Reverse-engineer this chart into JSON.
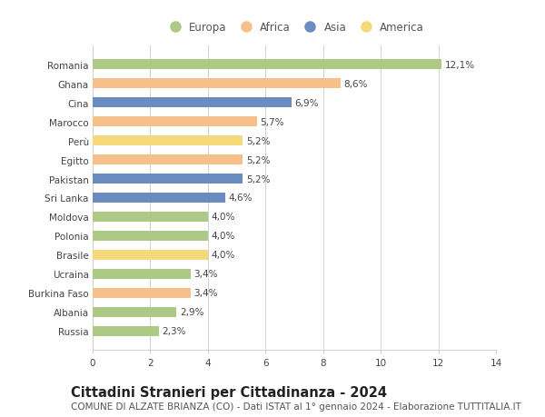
{
  "countries": [
    "Romania",
    "Ghana",
    "Cina",
    "Marocco",
    "Perù",
    "Egitto",
    "Pakistan",
    "Sri Lanka",
    "Moldova",
    "Polonia",
    "Brasile",
    "Ucraina",
    "Burkina Faso",
    "Albania",
    "Russia"
  ],
  "values": [
    12.1,
    8.6,
    6.9,
    5.7,
    5.2,
    5.2,
    5.2,
    4.6,
    4.0,
    4.0,
    4.0,
    3.4,
    3.4,
    2.9,
    2.3
  ],
  "labels": [
    "12,1%",
    "8,6%",
    "6,9%",
    "5,7%",
    "5,2%",
    "5,2%",
    "5,2%",
    "4,6%",
    "4,0%",
    "4,0%",
    "4,0%",
    "3,4%",
    "3,4%",
    "2,9%",
    "2,3%"
  ],
  "continents": [
    "Europa",
    "Africa",
    "Asia",
    "Africa",
    "America",
    "Africa",
    "Asia",
    "Asia",
    "Europa",
    "Europa",
    "America",
    "Europa",
    "Africa",
    "Europa",
    "Europa"
  ],
  "colors": {
    "Europa": "#adc986",
    "Africa": "#f5c08a",
    "Asia": "#6b8cbf",
    "America": "#f5d97a"
  },
  "legend_order": [
    "Europa",
    "Africa",
    "Asia",
    "America"
  ],
  "title": "Cittadini Stranieri per Cittadinanza - 2024",
  "subtitle": "COMUNE DI ALZATE BRIANZA (CO) - Dati ISTAT al 1° gennaio 2024 - Elaborazione TUTTITALIA.IT",
  "xlim": [
    0,
    14
  ],
  "xticks": [
    0,
    2,
    4,
    6,
    8,
    10,
    12,
    14
  ],
  "bg_color": "#ffffff",
  "grid_color": "#d0d0d0",
  "bar_height": 0.55,
  "title_fontsize": 10.5,
  "subtitle_fontsize": 7.5,
  "tick_fontsize": 7.5,
  "label_fontsize": 7.5,
  "legend_fontsize": 8.5
}
